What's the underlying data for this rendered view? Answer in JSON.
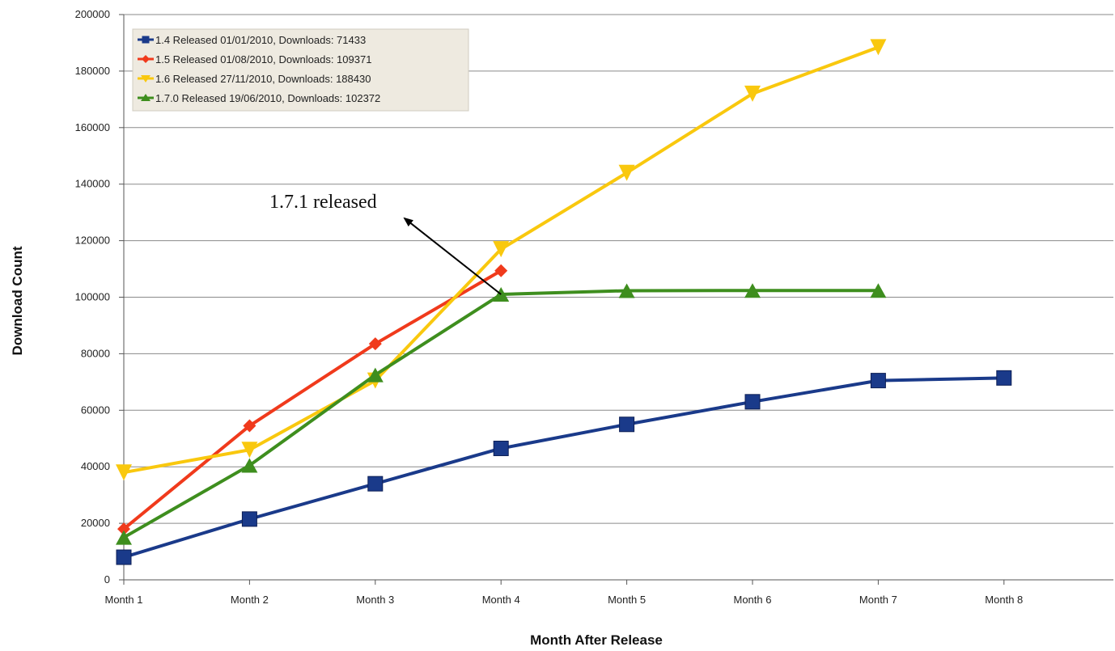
{
  "chart_data": {
    "type": "line",
    "xlabel": "Month After Release",
    "ylabel": "Download Count",
    "categories": [
      "Month 1",
      "Month 2",
      "Month 3",
      "Month 4",
      "Month 5",
      "Month 6",
      "Month 7",
      "Month 8"
    ],
    "ylim": [
      0,
      200000
    ],
    "yticks": [
      0,
      20000,
      40000,
      60000,
      80000,
      100000,
      120000,
      140000,
      160000,
      180000,
      200000
    ],
    "grid": true,
    "legend_position": "top-left",
    "series": [
      {
        "name": "1.4 Released 01/01/2010, Downloads: 71433",
        "color": "#1a3a8a",
        "marker": "square",
        "values": [
          8000,
          21500,
          34000,
          46500,
          55000,
          63000,
          70500,
          71433
        ]
      },
      {
        "name": "1.5 Released 01/08/2010, Downloads: 109371",
        "color": "#f03a1c",
        "marker": "diamond",
        "values": [
          18000,
          54500,
          83500,
          109371,
          null,
          null,
          null,
          null
        ]
      },
      {
        "name": "1.6 Released 27/11/2010, Downloads: 188430",
        "color": "#f9c80e",
        "marker": "triangle-down",
        "values": [
          38000,
          46000,
          70500,
          117000,
          144000,
          172000,
          188430,
          null
        ]
      },
      {
        "name": "1.7.0 Released 19/06/2010, Downloads: 102372",
        "color": "#3e8e1e",
        "marker": "triangle-up",
        "values": [
          15000,
          40500,
          72500,
          101000,
          102300,
          102372,
          102372,
          null
        ]
      }
    ],
    "annotations": [
      {
        "text": "1.7.1 released",
        "points_to": {
          "category": "Month 4",
          "value": 101000
        }
      }
    ]
  }
}
